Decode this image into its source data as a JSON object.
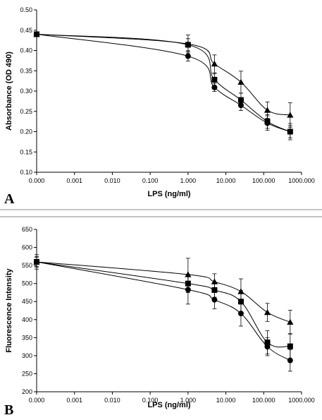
{
  "chart_data": [
    {
      "type": "line",
      "panel_label": "A",
      "xlabel": "LPS (ng/ml)",
      "ylabel": "Absorbance (OD 490)",
      "x_scale": "log",
      "x_ticks": [
        "0.000",
        "0.001",
        "0.010",
        "0.100",
        "1.000",
        "10.000",
        "100.000",
        "1000.000"
      ],
      "y_ticks": [
        "0.10",
        "0.15",
        "0.20",
        "0.25",
        "0.30",
        "0.35",
        "0.40",
        "0.45",
        "0.50"
      ],
      "ylim": [
        0.1,
        0.5
      ],
      "grid": false,
      "legend": "none",
      "x": [
        0,
        1,
        5,
        25,
        125,
        500
      ],
      "series": [
        {
          "marker": "triangle",
          "values": [
            0.44,
            0.416,
            0.367,
            0.322,
            0.253,
            0.241
          ],
          "errors": [
            0.005,
            0.022,
            0.022,
            0.027,
            0.02,
            0.03
          ]
        },
        {
          "marker": "square",
          "values": [
            0.44,
            0.414,
            0.328,
            0.278,
            0.225,
            0.2
          ],
          "errors": [
            0.005,
            0.015,
            0.015,
            0.017,
            0.017,
            0.02
          ]
        },
        {
          "marker": "circle",
          "values": [
            0.44,
            0.386,
            0.309,
            0.265,
            0.221,
            0.2
          ],
          "errors": [
            0.005,
            0.012,
            0.01,
            0.013,
            0.018,
            0.015
          ]
        }
      ]
    },
    {
      "type": "line",
      "panel_label": "B",
      "xlabel": "LPS (ng/ml)",
      "ylabel": "Fluorescence Intensity",
      "x_scale": "log",
      "x_ticks": [
        "0.000",
        "0.001",
        "0.010",
        "0.100",
        "1.000",
        "10.000",
        "100.000",
        "1000.000"
      ],
      "y_ticks": [
        "200",
        "250",
        "300",
        "350",
        "400",
        "450",
        "500",
        "550",
        "600",
        "650"
      ],
      "ylim": [
        200,
        650
      ],
      "grid": false,
      "legend": "none",
      "x": [
        0,
        1,
        5,
        25,
        125,
        500
      ],
      "series": [
        {
          "marker": "triangle",
          "values": [
            560,
            525,
            505,
            478,
            420,
            393
          ],
          "errors": [
            20,
            45,
            22,
            35,
            25,
            33
          ]
        },
        {
          "marker": "square",
          "values": [
            560,
            500,
            482,
            450,
            337,
            326
          ],
          "errors": [
            15,
            25,
            20,
            30,
            32,
            35
          ]
        },
        {
          "marker": "circle",
          "values": [
            560,
            483,
            455,
            417,
            325,
            287
          ],
          "errors": [
            12,
            40,
            25,
            35,
            25,
            30
          ]
        }
      ]
    }
  ]
}
